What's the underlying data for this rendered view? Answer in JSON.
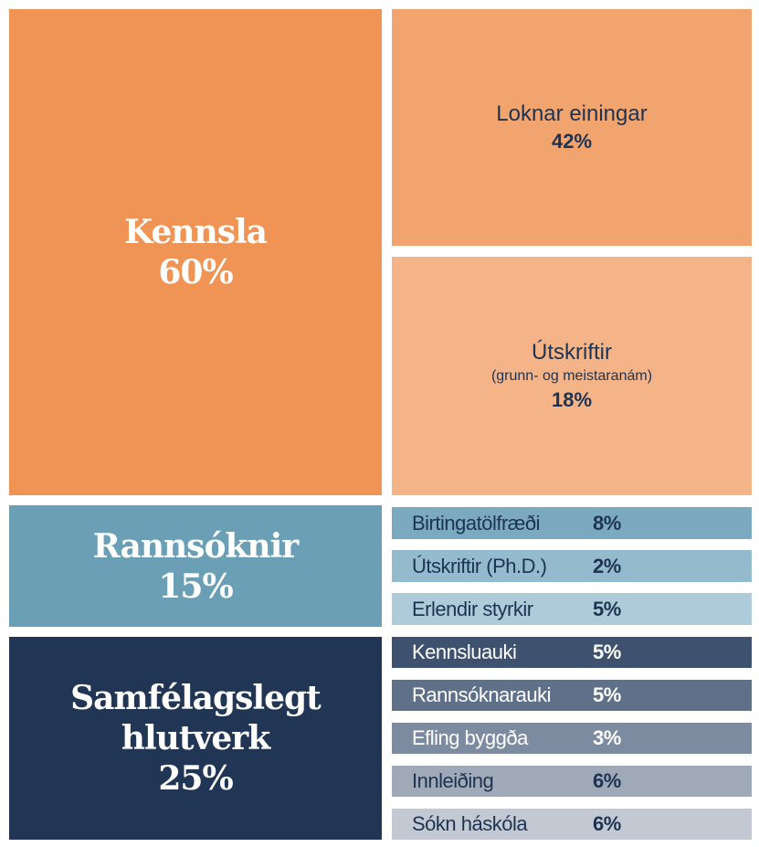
{
  "chart_data": {
    "type": "treemap",
    "title": "",
    "groups": [
      {
        "name": "Kennsla",
        "value": 60,
        "label_value": "60%",
        "color": "#EF9454",
        "children": [
          {
            "name": "Loknar einingar",
            "value": 42,
            "label_value": "42%",
            "color": "#F2A46E"
          },
          {
            "name": "Útskriftir",
            "note": "(grunn- og meistaranám)",
            "value": 18,
            "label_value": "18%",
            "color": "#F4B488"
          }
        ]
      },
      {
        "name": "Rannsóknir",
        "value": 15,
        "label_value": "15%",
        "color": "#6B9FB5",
        "children": [
          {
            "name": "Birtingatölfræði",
            "value": 8,
            "label_value": "8%",
            "color": "#7BAAC0"
          },
          {
            "name": "Útskriftir (Ph.D.)",
            "value": 2,
            "label_value": "2%",
            "color": "#93BBCD"
          },
          {
            "name": "Erlendir styrkir",
            "value": 5,
            "label_value": "5%",
            "color": "#AECBD9"
          }
        ]
      },
      {
        "name": "Samfélagslegt hlutverk",
        "name_line1": "Samfélagslegt",
        "name_line2": "hlutverk",
        "value": 25,
        "label_value": "25%",
        "color": "#213554",
        "children": [
          {
            "name": "Kennsluauki",
            "value": 5,
            "label_value": "5%",
            "color": "#3E5270",
            "text": "#ffffff"
          },
          {
            "name": "Rannsóknarauki",
            "value": 5,
            "label_value": "5%",
            "color": "#5F7089",
            "text": "#ffffff"
          },
          {
            "name": "Efling byggða",
            "value": 3,
            "label_value": "3%",
            "color": "#7D8BA0",
            "text": "#ffffff"
          },
          {
            "name": "Innleiðing",
            "value": 6,
            "label_value": "6%",
            "color": "#A0A9B8",
            "text": "#1E3352"
          },
          {
            "name": "Sókn háskóla",
            "value": 6,
            "label_value": "6%",
            "color": "#C3C9D3",
            "text": "#1E3352"
          }
        ]
      }
    ]
  }
}
